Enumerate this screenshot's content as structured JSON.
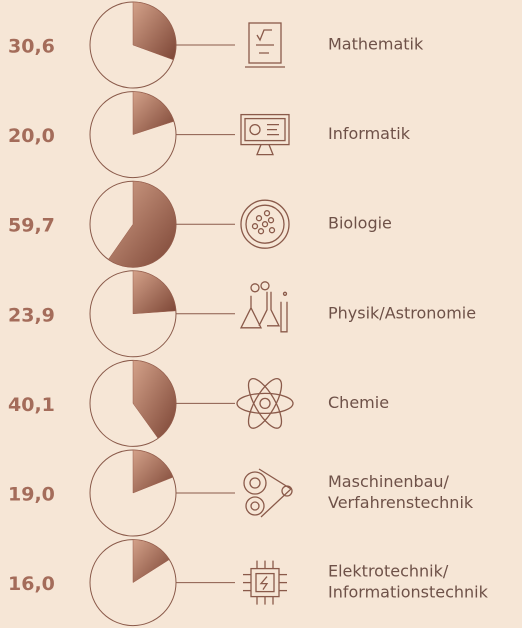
{
  "chart_data": {
    "type": "pie",
    "categories": [
      [
        "Mathematik"
      ],
      [
        "Informatik"
      ],
      [
        "Biologie"
      ],
      [
        "Physik/Astronomie"
      ],
      [
        "Chemie"
      ],
      [
        "Maschinenbau/",
        "Verfahrenstechnik"
      ],
      [
        "Elektrotechnik/",
        "Informationstechnik"
      ]
    ],
    "values": [
      30.6,
      20.0,
      59.7,
      23.9,
      40.1,
      19.0,
      16.0
    ],
    "value_labels": [
      "30,6",
      "20,0",
      "59,7",
      "23,9",
      "40,1",
      "19,0",
      "16,0"
    ],
    "total": 100,
    "color": "#9a5e4c"
  }
}
